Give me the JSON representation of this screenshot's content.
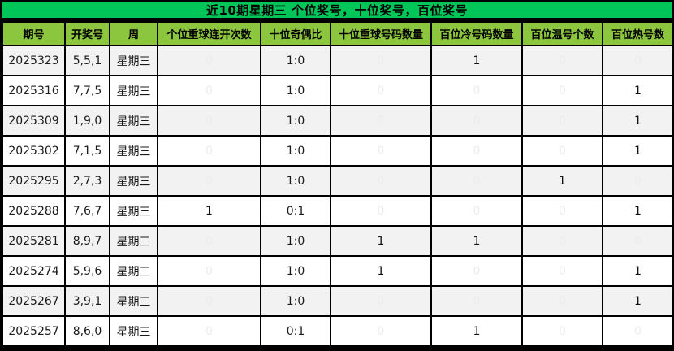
{
  "title": "近10期星期三 个位奖号，十位奖号，百位奖号",
  "colors": {
    "title_bg": "#00C65A",
    "header_bg": "#8CC63E",
    "highlight_navy": "#0C2B52",
    "highlight_yellow": "#FFE43B",
    "row_alt_bg": "#F2F2F2",
    "border": "#000000"
  },
  "chart_data": {
    "type": "table",
    "title": "近10期星期三 个位奖号，十位奖号，百位奖号",
    "columns": [
      "期号",
      "开奖号",
      "周",
      "个位重球连开次数",
      "十位奇偶比",
      "十位重球号码数量",
      "百位冷号码数量",
      "百位温号个数",
      "百位热号数"
    ],
    "rows": [
      [
        "2025323",
        "5,5,1",
        "星期三",
        "0",
        "1:0",
        "0",
        "1",
        "0",
        "0"
      ],
      [
        "2025316",
        "7,7,5",
        "星期三",
        "0",
        "1:0",
        "0",
        "0",
        "0",
        "1"
      ],
      [
        "2025309",
        "1,9,0",
        "星期三",
        "0",
        "1:0",
        "0",
        "0",
        "0",
        "1"
      ],
      [
        "2025302",
        "7,1,5",
        "星期三",
        "0",
        "1:0",
        "0",
        "0",
        "0",
        "1"
      ],
      [
        "2025295",
        "2,7,3",
        "星期三",
        "0",
        "1:0",
        "0",
        "0",
        "1",
        "0"
      ],
      [
        "2025288",
        "7,6,7",
        "星期三",
        "1",
        "0:1",
        "0",
        "0",
        "0",
        "1"
      ],
      [
        "2025281",
        "8,9,7",
        "星期三",
        "0",
        "1:0",
        "1",
        "1",
        "0",
        "0"
      ],
      [
        "2025274",
        "5,9,6",
        "星期三",
        "0",
        "1:0",
        "1",
        "0",
        "0",
        "1"
      ],
      [
        "2025267",
        "3,9,1",
        "星期三",
        "0",
        "1:0",
        "0",
        "0",
        "0",
        "1"
      ],
      [
        "2025257",
        "8,6,0",
        "星期三",
        "0",
        "0:1",
        "0",
        "1",
        "0",
        "0"
      ]
    ],
    "legend": "yellow cell = value 1 highlight, navy cell = value 0"
  },
  "table": {
    "headers": [
      "期号",
      "开奖号",
      "周",
      "个位重球连开次数",
      "十位奇偶比",
      "十位重球号码数量",
      "百位冷号码数量",
      "百位温号个数",
      "百位热号数"
    ],
    "rows": [
      {
        "cells": [
          {
            "text": "2025323",
            "hl": "plain"
          },
          {
            "text": "5,5,1",
            "hl": "plain"
          },
          {
            "text": "星期三",
            "hl": "plain"
          },
          {
            "text": "0",
            "hl": "navy"
          },
          {
            "text": "1:0",
            "hl": "plain"
          },
          {
            "text": "0",
            "hl": "navy"
          },
          {
            "text": "1",
            "hl": "yellow"
          },
          {
            "text": "0",
            "hl": "navy"
          },
          {
            "text": "0",
            "hl": "navy"
          }
        ]
      },
      {
        "cells": [
          {
            "text": "2025316",
            "hl": "plain"
          },
          {
            "text": "7,7,5",
            "hl": "plain"
          },
          {
            "text": "星期三",
            "hl": "plain"
          },
          {
            "text": "0",
            "hl": "navy"
          },
          {
            "text": "1:0",
            "hl": "plain"
          },
          {
            "text": "0",
            "hl": "navy"
          },
          {
            "text": "0",
            "hl": "navy"
          },
          {
            "text": "0",
            "hl": "navy"
          },
          {
            "text": "1",
            "hl": "yellow"
          }
        ]
      },
      {
        "cells": [
          {
            "text": "2025309",
            "hl": "plain"
          },
          {
            "text": "1,9,0",
            "hl": "plain"
          },
          {
            "text": "星期三",
            "hl": "plain"
          },
          {
            "text": "0",
            "hl": "navy"
          },
          {
            "text": "1:0",
            "hl": "plain"
          },
          {
            "text": "0",
            "hl": "navy"
          },
          {
            "text": "0",
            "hl": "navy"
          },
          {
            "text": "0",
            "hl": "navy"
          },
          {
            "text": "1",
            "hl": "yellow"
          }
        ]
      },
      {
        "cells": [
          {
            "text": "2025302",
            "hl": "plain"
          },
          {
            "text": "7,1,5",
            "hl": "plain"
          },
          {
            "text": "星期三",
            "hl": "plain"
          },
          {
            "text": "0",
            "hl": "navy"
          },
          {
            "text": "1:0",
            "hl": "plain"
          },
          {
            "text": "0",
            "hl": "navy"
          },
          {
            "text": "0",
            "hl": "navy"
          },
          {
            "text": "0",
            "hl": "navy"
          },
          {
            "text": "1",
            "hl": "yellow"
          }
        ]
      },
      {
        "cells": [
          {
            "text": "2025295",
            "hl": "plain"
          },
          {
            "text": "2,7,3",
            "hl": "plain"
          },
          {
            "text": "星期三",
            "hl": "plain"
          },
          {
            "text": "0",
            "hl": "navy"
          },
          {
            "text": "1:0",
            "hl": "plain"
          },
          {
            "text": "0",
            "hl": "navy"
          },
          {
            "text": "0",
            "hl": "navy"
          },
          {
            "text": "1",
            "hl": "yellow"
          },
          {
            "text": "0",
            "hl": "navy"
          }
        ]
      },
      {
        "cells": [
          {
            "text": "2025288",
            "hl": "plain"
          },
          {
            "text": "7,6,7",
            "hl": "plain"
          },
          {
            "text": "星期三",
            "hl": "plain"
          },
          {
            "text": "1",
            "hl": "yellow"
          },
          {
            "text": "0:1",
            "hl": "plain"
          },
          {
            "text": "0",
            "hl": "navy"
          },
          {
            "text": "0",
            "hl": "navy"
          },
          {
            "text": "0",
            "hl": "navy"
          },
          {
            "text": "1",
            "hl": "yellow"
          }
        ]
      },
      {
        "cells": [
          {
            "text": "2025281",
            "hl": "plain"
          },
          {
            "text": "8,9,7",
            "hl": "plain"
          },
          {
            "text": "星期三",
            "hl": "plain"
          },
          {
            "text": "0",
            "hl": "navy"
          },
          {
            "text": "1:0",
            "hl": "plain"
          },
          {
            "text": "1",
            "hl": "yellow"
          },
          {
            "text": "1",
            "hl": "yellow"
          },
          {
            "text": "0",
            "hl": "navy"
          },
          {
            "text": "0",
            "hl": "navy"
          }
        ]
      },
      {
        "cells": [
          {
            "text": "2025274",
            "hl": "plain"
          },
          {
            "text": "5,9,6",
            "hl": "plain"
          },
          {
            "text": "星期三",
            "hl": "plain"
          },
          {
            "text": "0",
            "hl": "navy"
          },
          {
            "text": "1:0",
            "hl": "plain"
          },
          {
            "text": "1",
            "hl": "yellow"
          },
          {
            "text": "0",
            "hl": "navy"
          },
          {
            "text": "0",
            "hl": "navy"
          },
          {
            "text": "1",
            "hl": "yellow"
          }
        ]
      },
      {
        "cells": [
          {
            "text": "2025267",
            "hl": "plain"
          },
          {
            "text": "3,9,1",
            "hl": "plain"
          },
          {
            "text": "星期三",
            "hl": "plain"
          },
          {
            "text": "0",
            "hl": "navy"
          },
          {
            "text": "1:0",
            "hl": "plain"
          },
          {
            "text": "0",
            "hl": "navy"
          },
          {
            "text": "0",
            "hl": "navy"
          },
          {
            "text": "0",
            "hl": "navy"
          },
          {
            "text": "1",
            "hl": "yellow"
          }
        ]
      },
      {
        "cells": [
          {
            "text": "2025257",
            "hl": "plain"
          },
          {
            "text": "8,6,0",
            "hl": "plain"
          },
          {
            "text": "星期三",
            "hl": "plain"
          },
          {
            "text": "0",
            "hl": "navy"
          },
          {
            "text": "0:1",
            "hl": "plain"
          },
          {
            "text": "0",
            "hl": "navy"
          },
          {
            "text": "1",
            "hl": "yellow"
          },
          {
            "text": "0",
            "hl": "navy"
          },
          {
            "text": "0",
            "hl": "navy"
          }
        ]
      }
    ]
  }
}
